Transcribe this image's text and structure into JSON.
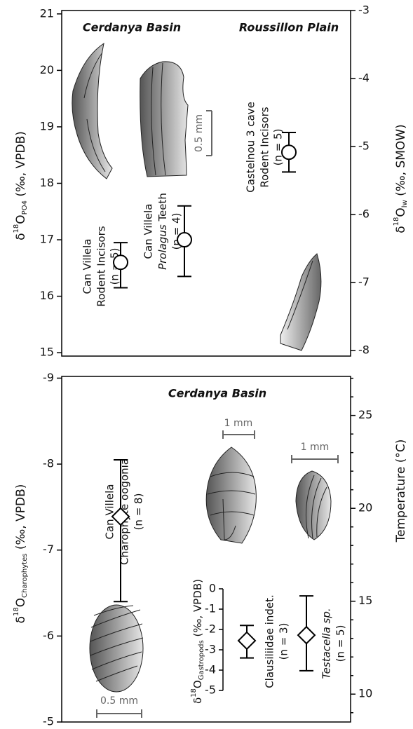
{
  "chart_data": [
    {
      "type": "errorbar-points",
      "headings": [
        "Cerdanya Basin",
        "Roussillon Plain"
      ],
      "ylabel": {
        "delta": "δ",
        "iso": "18",
        "element": "O",
        "sub": "PO4",
        "unit": " (‰, VPDB)"
      },
      "y2label": {
        "delta": "δ",
        "iso": "18",
        "element": "O",
        "sub": "lw",
        "unit": " (‰, SMOW)"
      },
      "ylim": [
        14.94,
        21.06
      ],
      "yticks": [
        15,
        16,
        17,
        18,
        19,
        20,
        21
      ],
      "y2lim": [
        -8.08,
        -3
      ],
      "y2ticks": [
        -8,
        -7,
        -6,
        -5,
        -4,
        -3
      ],
      "values": [
        16.6,
        17.0,
        18.55
      ],
      "whisker_low": [
        16.15,
        16.35,
        18.2
      ],
      "whisker_high": [
        16.95,
        17.6,
        18.9
      ],
      "marker": "circle",
      "labels": [
        [
          "Can Villela",
          "Rodent Incisors",
          "(n = 5)"
        ],
        [
          "Can Villela",
          "Prolagus",
          " Teeth",
          "(n = 4)"
        ],
        [
          "Castelnou 3 cave",
          "Rodent Incisors",
          "(n = 5)"
        ]
      ],
      "scale_bars": [
        "0.5 mm"
      ]
    },
    {
      "type": "errorbar-points",
      "headings": [
        "Cerdanya Basin"
      ],
      "ylabel": {
        "delta": "δ",
        "iso": "18",
        "element": "O",
        "sub": "Charophytes",
        "unit": " (‰, VPDB)"
      },
      "y2label": "Temperature (°C)",
      "ylim": [
        -5,
        -9.02
      ],
      "yticks": [
        -9,
        -8,
        -7,
        -6,
        -5
      ],
      "y2lim": [
        8.5,
        27.1
      ],
      "y2ticks": [
        10,
        15,
        20,
        25
      ],
      "y2minor": [
        9,
        11,
        12,
        13,
        14,
        16,
        17,
        18,
        19,
        21,
        22,
        23,
        24,
        26,
        27
      ],
      "values": [
        -7.39
      ],
      "whisker_low": [
        -6.4
      ],
      "whisker_high": [
        -8.05
      ],
      "marker": "diamond",
      "labels": [
        [
          "Can Villela",
          "Charophyte oogonia",
          "(n = 8)"
        ]
      ],
      "scale_bars": [
        "1 mm",
        "1 mm",
        "0.5 mm"
      ],
      "inset": {
        "ylabel": {
          "delta": "δ",
          "iso": "18",
          "element": "O",
          "sub": "Gastropods",
          "unit": " (‰, VPDB)"
        },
        "ylim": [
          -5,
          0
        ],
        "yticks": [
          0,
          -1,
          -2,
          -3,
          -4,
          -5
        ],
        "values": [
          -2.55,
          -2.28
        ],
        "whisker_low": [
          -3.4,
          -4.03
        ],
        "whisker_high": [
          -1.8,
          -0.35
        ],
        "labels": [
          [
            "Clausiliidae indet.",
            "(n = 3)"
          ],
          [
            "Testacella sp.",
            "(n = 5)"
          ]
        ]
      }
    }
  ]
}
